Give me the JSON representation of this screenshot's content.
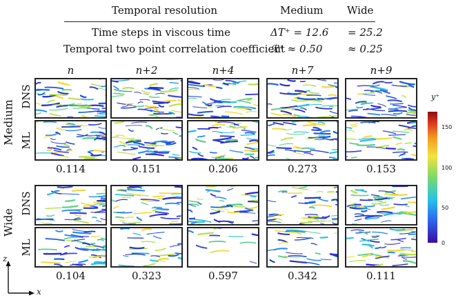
{
  "table": {
    "header": {
      "c1": "Temporal resolution",
      "c2": "Medium",
      "c3": "Wide"
    },
    "rows": [
      {
        "label": "Time steps in viscous time",
        "medium": "ΔT⁺ = 12.6",
        "wide": "= 25.2"
      },
      {
        "label": "Temporal two point correlation coefficient",
        "medium": "ℛ⁺ ≈ 0.50",
        "wide": "≈ 0.25"
      }
    ]
  },
  "columns": [
    "n",
    "n+2",
    "n+4",
    "n+7",
    "n+9"
  ],
  "groups": [
    {
      "name": "Medium",
      "rows": [
        "DNS",
        "ML"
      ],
      "values": [
        "0.114",
        "0.151",
        "0.206",
        "0.273",
        "0.153"
      ]
    },
    {
      "name": "Wide",
      "rows": [
        "DNS",
        "ML"
      ],
      "values": [
        "0.104",
        "0.323",
        "0.597",
        "0.342",
        "0.111"
      ]
    }
  ],
  "colorbar": {
    "label": "y⁺",
    "ticks": [
      "150",
      "100",
      "50",
      "0"
    ]
  },
  "axes": {
    "z": "z",
    "x": "x"
  }
}
